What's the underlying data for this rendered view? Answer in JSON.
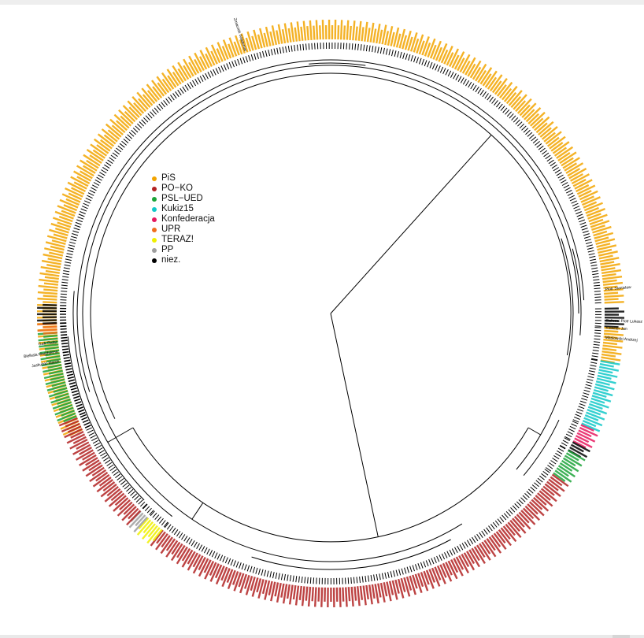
{
  "legend": {
    "items": [
      {
        "label": "PiS",
        "color": "#F2A400"
      },
      {
        "label": "PO−KO",
        "color": "#B22222"
      },
      {
        "label": "PSL−UED",
        "color": "#1BA338"
      },
      {
        "label": "Kukiz15",
        "color": "#11C8C8"
      },
      {
        "label": "Konfederacja",
        "color": "#E6195E"
      },
      {
        "label": "UPR",
        "color": "#F06E1E"
      },
      {
        "label": "TERAZ!",
        "color": "#F0F000"
      },
      {
        "label": "PP",
        "color": "#9E9E9E"
      },
      {
        "label": "niez.",
        "color": "#000000"
      }
    ]
  },
  "leaf_groups": {
    "PiS": 232,
    "PO−KO": 152,
    "PSL−UED": 25,
    "Kukiz15": 22,
    "Konfederacja": 6,
    "UPR": 2,
    "TERAZ!": 4,
    "PP": 2,
    "niez.": 10
  },
  "named_leaves": [
    {
      "name": "Piotr Stanislaw",
      "party": "niez."
    },
    {
      "name": "Baliszai Piotr Lukasz",
      "party": "niez."
    },
    {
      "name": "Klawiter Jan",
      "party": "niez."
    },
    {
      "name": "Maslowski Andrzej",
      "party": "niez."
    },
    {
      "name": "Jaskulski Marek",
      "party": "niez."
    },
    {
      "name": "Bielkala Magdalena",
      "party": "niez."
    },
    {
      "name": "Gaik Rafal",
      "party": "niez."
    },
    {
      "name": "Zmaczek Waldemar",
      "party": "niez."
    }
  ]
}
